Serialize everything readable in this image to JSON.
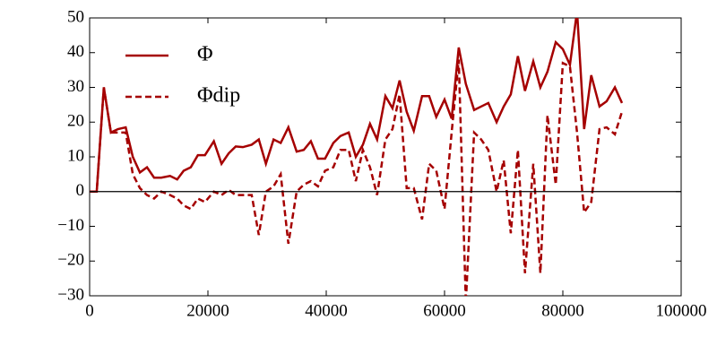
{
  "chart_data": {
    "type": "line",
    "x": [
      0,
      1200,
      2400,
      3600,
      4800,
      6100,
      7300,
      8500,
      9700,
      10900,
      12100,
      13600,
      14800,
      15900,
      17100,
      18300,
      19500,
      21000,
      22300,
      23500,
      24700,
      25900,
      27400,
      28600,
      29800,
      31100,
      32300,
      33600,
      35000,
      36200,
      37400,
      38600,
      39800,
      41200,
      42400,
      43800,
      45000,
      46200,
      47400,
      48600,
      50000,
      51200,
      52400,
      53600,
      54800,
      56200,
      57400,
      58600,
      60000,
      61200,
      62400,
      63600,
      65000,
      66200,
      67400,
      68800,
      70000,
      71200,
      72400,
      73600,
      75000,
      76200,
      77400,
      78800,
      80000,
      81200,
      82400,
      83600,
      84800,
      86200,
      87400,
      88800,
      90000
    ],
    "series": [
      {
        "name": "Φ",
        "color": "#a50000",
        "dash": false,
        "values": [
          0,
          0,
          30,
          17,
          18,
          18.5,
          10,
          5.5,
          7,
          4,
          4,
          4.5,
          3.5,
          6,
          7,
          10.5,
          10.5,
          14.5,
          8,
          11,
          13,
          12.8,
          13.5,
          15,
          8,
          15,
          14,
          18.5,
          11.5,
          12,
          14.5,
          9.5,
          9.5,
          14,
          16,
          17,
          10,
          13.5,
          19.5,
          15,
          27.5,
          24,
          32,
          23,
          17.5,
          27.5,
          27.5,
          21.5,
          26.5,
          21,
          41.5,
          31,
          23.5,
          24.5,
          25.5,
          20,
          24.5,
          28,
          39,
          29,
          37.5,
          30,
          34.5,
          43,
          41,
          36.5,
          52,
          18,
          33.5,
          24.5,
          26,
          30,
          25.5
        ]
      },
      {
        "name": "Φdip",
        "color": "#a50000",
        "dash": true,
        "values": [
          0,
          0,
          30,
          17,
          17,
          17,
          5,
          1,
          -1,
          -2,
          0,
          -1,
          -2,
          -4,
          -5,
          -2,
          -3,
          0,
          -1,
          0.5,
          -1,
          -1,
          -1,
          -12.5,
          0,
          1.5,
          5,
          -15,
          0,
          2,
          3,
          1.5,
          6,
          7,
          12,
          12,
          3,
          12,
          7,
          -1,
          15,
          18,
          28,
          1,
          1,
          -8,
          8,
          6,
          -5,
          17,
          38,
          -32,
          17,
          15,
          12,
          0,
          9,
          -12,
          12,
          -23.5,
          8,
          -23.5,
          22,
          2,
          37,
          36,
          17,
          -6,
          -3,
          18,
          18.5,
          16.5,
          23
        ]
      }
    ],
    "xlim": [
      0,
      100000
    ],
    "xticks": [
      0,
      20000,
      40000,
      60000,
      80000,
      100000
    ],
    "ylim": [
      -30,
      50
    ],
    "yticks": [
      {
        "value": -30,
        "label": "−30"
      },
      {
        "value": -20,
        "label": "−20"
      },
      {
        "value": -10,
        "label": "−10"
      },
      0,
      10,
      20,
      30,
      40,
      50
    ],
    "zero_line": true,
    "legend": "upper left"
  }
}
